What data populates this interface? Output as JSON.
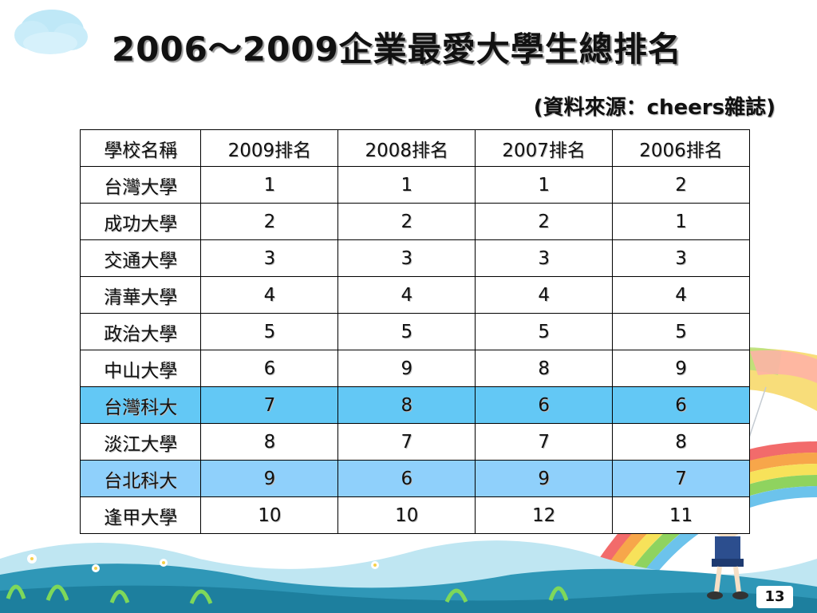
{
  "slide": {
    "title": "2006～2009企業最愛大學生總排名",
    "source": "(資料來源：cheers雜誌)",
    "page_number": "13"
  },
  "table": {
    "headers": [
      "學校名稱",
      "2009排名",
      "2008排名",
      "2007排名",
      "2006排名"
    ],
    "rows": [
      {
        "school": "台灣大學",
        "y2009": "1",
        "y2008": "1",
        "y2007": "1",
        "y2006": "2"
      },
      {
        "school": "成功大學",
        "y2009": "2",
        "y2008": "2",
        "y2007": "2",
        "y2006": "1"
      },
      {
        "school": "交通大學",
        "y2009": "3",
        "y2008": "3",
        "y2007": "3",
        "y2006": "3"
      },
      {
        "school": "清華大學",
        "y2009": "4",
        "y2008": "4",
        "y2007": "4",
        "y2006": "4"
      },
      {
        "school": "政治大學",
        "y2009": "5",
        "y2008": "5",
        "y2007": "5",
        "y2006": "5"
      },
      {
        "school": "中山大學",
        "y2009": "6",
        "y2008": "9",
        "y2007": "8",
        "y2006": "9"
      },
      {
        "school": "台灣科大",
        "y2009": "7",
        "y2008": "8",
        "y2007": "6",
        "y2006": "6"
      },
      {
        "school": "淡江大學",
        "y2009": "8",
        "y2008": "7",
        "y2007": "7",
        "y2006": "8"
      },
      {
        "school": "台北科大",
        "y2009": "9",
        "y2008": "6",
        "y2007": "9",
        "y2006": "7"
      },
      {
        "school": "逢甲大學",
        "y2009": "10",
        "y2008": "10",
        "y2007": "12",
        "y2006": "11"
      }
    ],
    "highlight_colors": {
      "台灣科大": "#63c8f5",
      "台北科大": "#8fd0fb"
    }
  },
  "decorations": [
    "cloud-icon",
    "parachute-icon",
    "rainbow-icon",
    "girl-figure-icon",
    "grass-hills-icon",
    "flower-icon"
  ]
}
